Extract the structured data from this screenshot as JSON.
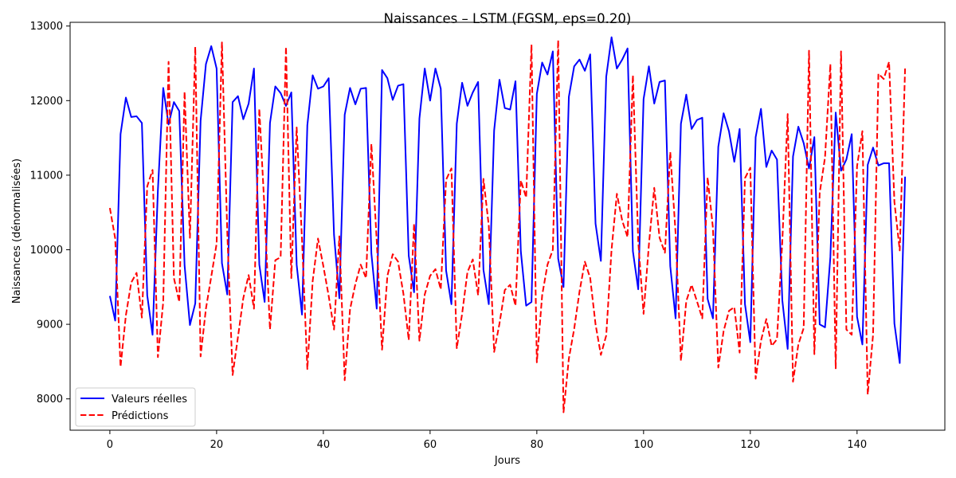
{
  "chart_data": {
    "type": "line",
    "title": "Naissances – LSTM (FGSM, eps=0.20)",
    "xlabel": "Jours",
    "ylabel": "Naissances (dénormalisées)",
    "xlim": [
      -7.45,
      156.45
    ],
    "ylim": [
      7580,
      13050
    ],
    "xticks": [
      0,
      20,
      40,
      60,
      80,
      100,
      120,
      140
    ],
    "yticks": [
      8000,
      9000,
      10000,
      11000,
      12000,
      13000
    ],
    "grid": false,
    "legend_position": "lower-left",
    "series": [
      {
        "name": "Valeurs réelles",
        "color": "#0000ff",
        "style": "solid",
        "x": [
          0,
          1,
          2,
          3,
          4,
          5,
          6,
          7,
          8,
          9,
          10,
          11,
          12,
          13,
          14,
          15,
          16,
          17,
          18,
          19,
          20,
          21,
          22,
          23,
          24,
          25,
          26,
          27,
          28,
          29,
          30,
          31,
          32,
          33,
          34,
          35,
          36,
          37,
          38,
          39,
          40,
          41,
          42,
          43,
          44,
          45,
          46,
          47,
          48,
          49,
          50,
          51,
          52,
          53,
          54,
          55,
          56,
          57,
          58,
          59,
          60,
          61,
          62,
          63,
          64,
          65,
          66,
          67,
          68,
          69,
          70,
          71,
          72,
          73,
          74,
          75,
          76,
          77,
          78,
          79,
          80,
          81,
          82,
          83,
          84,
          85,
          86,
          87,
          88,
          89,
          90,
          91,
          92,
          93,
          94,
          95,
          96,
          97,
          98,
          99,
          100,
          101,
          102,
          103,
          104,
          105,
          106,
          107,
          108,
          109,
          110,
          111,
          112,
          113,
          114,
          115,
          116,
          117,
          118,
          119,
          120,
          121,
          122,
          123,
          124,
          125,
          126,
          127,
          128,
          129,
          130,
          131,
          132,
          133,
          134,
          135,
          136,
          137,
          138,
          139,
          140,
          141,
          142,
          143,
          144,
          145,
          146,
          147,
          148,
          149
        ],
        "values": [
          9380,
          9050,
          11550,
          12040,
          11780,
          11790,
          11700,
          9390,
          8860,
          10800,
          12170,
          11680,
          11980,
          11860,
          9790,
          8990,
          9280,
          11730,
          12490,
          12730,
          12430,
          9820,
          9400,
          11980,
          12060,
          11750,
          11960,
          12430,
          9800,
          9300,
          11700,
          12190,
          12100,
          11930,
          12110,
          9800,
          9130,
          11670,
          12340,
          12160,
          12190,
          12300,
          10200,
          9350,
          11810,
          12170,
          11950,
          12160,
          12170,
          9950,
          9210,
          12410,
          12300,
          12010,
          12200,
          12220,
          9920,
          9430,
          11760,
          12430,
          12000,
          12430,
          12160,
          9720,
          9270,
          11690,
          12240,
          11930,
          12110,
          12250,
          9730,
          9270,
          11600,
          12280,
          11900,
          11880,
          12260,
          9980,
          9250,
          9300,
          12090,
          12510,
          12350,
          12660,
          9880,
          9500,
          12050,
          12460,
          12550,
          12400,
          12620,
          10350,
          9850,
          12320,
          12850,
          12430,
          12550,
          12700,
          9980,
          9470,
          12020,
          12460,
          11960,
          12250,
          12270,
          9780,
          9080,
          11690,
          12080,
          11620,
          11740,
          11770,
          9340,
          9080,
          11380,
          11830,
          11590,
          11180,
          11620,
          9270,
          8760,
          11510,
          11890,
          11110,
          11330,
          11210,
          9320,
          8670,
          11250,
          11650,
          11430,
          11090,
          11510,
          9000,
          8960,
          9900,
          11840,
          11060,
          11210,
          11550,
          9100,
          8730,
          11140,
          11370,
          11130,
          11160,
          11160,
          9010,
          8480,
          10980
        ]
      },
      {
        "name": "Prédictions",
        "color": "#ff0000",
        "style": "dashed",
        "x": [
          0,
          1,
          2,
          3,
          4,
          5,
          6,
          7,
          8,
          9,
          10,
          11,
          12,
          13,
          14,
          15,
          16,
          17,
          18,
          19,
          20,
          21,
          22,
          23,
          24,
          25,
          26,
          27,
          28,
          29,
          30,
          31,
          32,
          33,
          34,
          35,
          36,
          37,
          38,
          39,
          40,
          41,
          42,
          43,
          44,
          45,
          46,
          47,
          48,
          49,
          50,
          51,
          52,
          53,
          54,
          55,
          56,
          57,
          58,
          59,
          60,
          61,
          62,
          63,
          64,
          65,
          66,
          67,
          68,
          69,
          70,
          71,
          72,
          73,
          74,
          75,
          76,
          77,
          78,
          79,
          80,
          81,
          82,
          83,
          84,
          85,
          86,
          87,
          88,
          89,
          90,
          91,
          92,
          93,
          94,
          95,
          96,
          97,
          98,
          99,
          100,
          101,
          102,
          103,
          104,
          105,
          106,
          107,
          108,
          109,
          110,
          111,
          112,
          113,
          114,
          115,
          116,
          117,
          118,
          119,
          120,
          121,
          122,
          123,
          124,
          125,
          126,
          127,
          128,
          129,
          130,
          131,
          132,
          133,
          134,
          135,
          136,
          137,
          138,
          139,
          140,
          141,
          142,
          143,
          144,
          145,
          146,
          147,
          148,
          149
        ],
        "values": [
          10560,
          10150,
          8430,
          9120,
          9560,
          9690,
          9090,
          10850,
          11070,
          8560,
          9300,
          12520,
          9620,
          9300,
          12120,
          10160,
          12720,
          8570,
          9210,
          9640,
          10080,
          12780,
          10230,
          8320,
          8830,
          9350,
          9660,
          9210,
          11890,
          10510,
          8930,
          9860,
          9900,
          12720,
          9620,
          11640,
          10140,
          8400,
          9580,
          10150,
          9780,
          9380,
          8930,
          10180,
          8250,
          9200,
          9540,
          9800,
          9620,
          11420,
          10120,
          8660,
          9650,
          9940,
          9840,
          9410,
          8790,
          10350,
          8780,
          9400,
          9650,
          9740,
          9470,
          10940,
          11090,
          8680,
          9140,
          9700,
          9870,
          9390,
          10950,
          10320,
          8630,
          9010,
          9460,
          9530,
          9250,
          10930,
          10700,
          12750,
          8490,
          9390,
          9800,
          10000,
          12810,
          7820,
          8540,
          8940,
          9440,
          9840,
          9620,
          9000,
          8590,
          8850,
          10000,
          10750,
          10390,
          10170,
          12340,
          10110,
          9140,
          10070,
          10830,
          10160,
          9960,
          11310,
          10220,
          8510,
          9310,
          9530,
          9310,
          9080,
          10970,
          10290,
          8420,
          8910,
          9180,
          9230,
          8620,
          10960,
          11100,
          8270,
          8780,
          9070,
          8710,
          8800,
          10120,
          11820,
          8230,
          8730,
          8950,
          12670,
          8600,
          10760,
          11240,
          12490,
          8410,
          12660,
          8930,
          8860,
          11120,
          11590,
          8060,
          8860,
          12360,
          12290,
          12520,
          10640,
          9990,
          12430
        ]
      }
    ]
  }
}
